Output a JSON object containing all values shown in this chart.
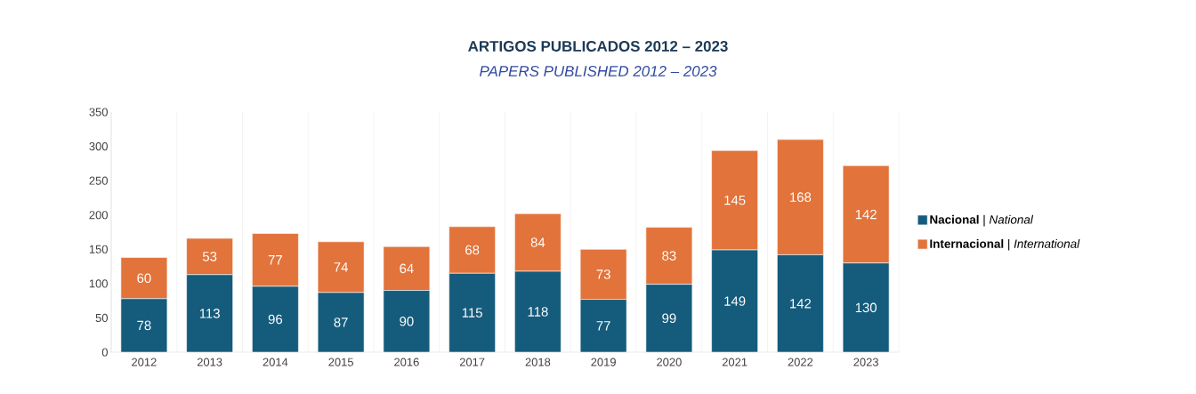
{
  "chart_data": {
    "type": "bar",
    "title": "ARTIGOS PUBLICADOS 2012 – 2023",
    "subtitle": "PAPERS PUBLISHED 2012 – 2023",
    "categories": [
      "2012",
      "2013",
      "2014",
      "2015",
      "2016",
      "2017",
      "2018",
      "2019",
      "2020",
      "2021",
      "2022",
      "2023"
    ],
    "series": [
      {
        "name": "**Nacional** | *National*",
        "color": "#155b7c",
        "values": [
          78,
          113,
          96,
          87,
          90,
          115,
          118,
          77,
          99,
          149,
          142,
          130
        ]
      },
      {
        "name": "**Internacional** | *International*",
        "color": "#e2733a",
        "values": [
          60,
          53,
          77,
          74,
          64,
          68,
          84,
          73,
          83,
          145,
          168,
          142
        ]
      }
    ],
    "stacked": true,
    "data_labels": true,
    "ylim": [
      0,
      350
    ],
    "yticks": [
      0,
      50,
      100,
      150,
      200,
      250,
      300,
      350
    ],
    "grid": "x",
    "legend": "right"
  }
}
